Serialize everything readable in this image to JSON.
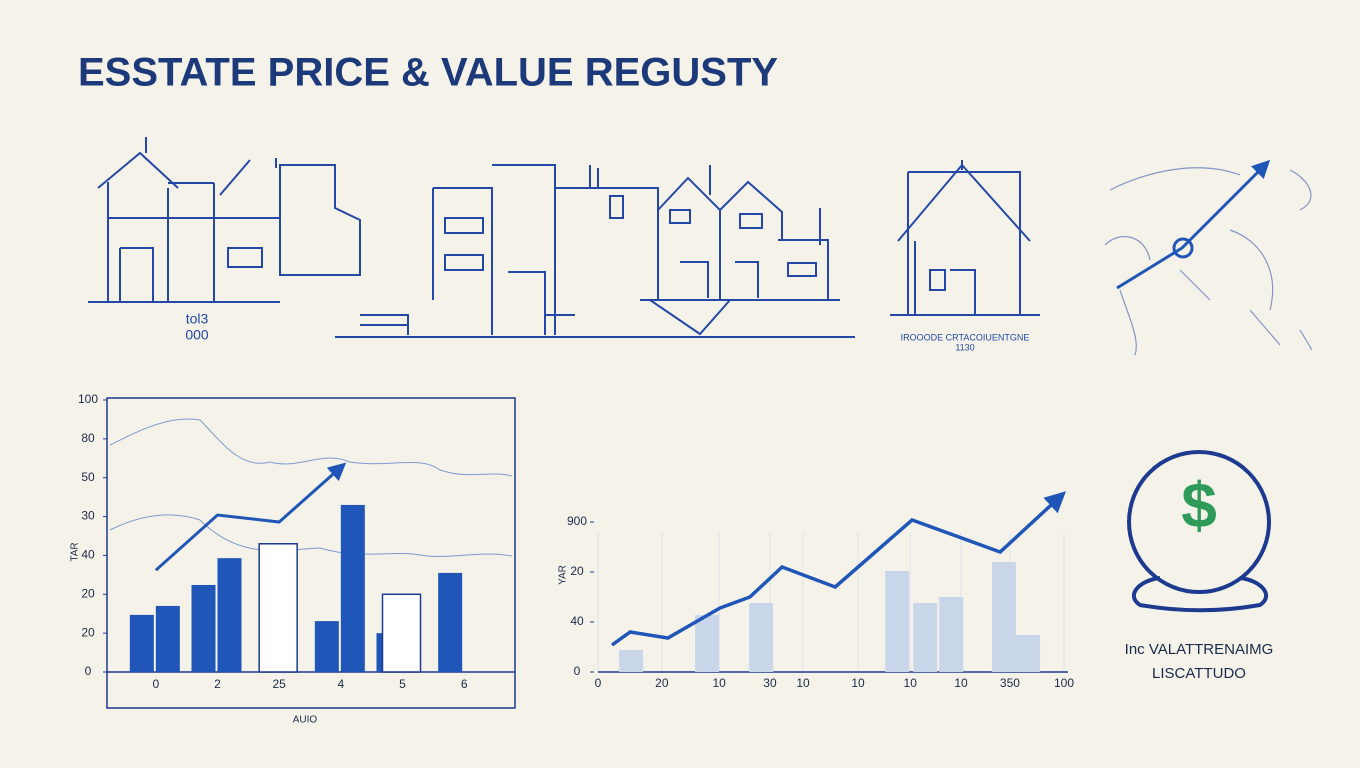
{
  "title": "ESSTATE PRICE & VALUE REGUSTY",
  "illustrations": {
    "house_label": [
      "tol3",
      "000"
    ],
    "caption": "IROOODE CRTACOIUENTGNE",
    "caption_sub": "1130"
  },
  "chart_data": [
    {
      "type": "bar",
      "ylabel": "TAR",
      "xlabel": "AUIO",
      "categories": [
        "0",
        "2",
        "25",
        "4",
        "5",
        "6"
      ],
      "series": [
        {
          "color": "#1f56b8",
          "values": [
            1.47,
            2.24,
            null,
            1.31,
            1.0,
            2.55
          ]
        },
        {
          "color": "#1f56b8",
          "values": [
            1.7,
            2.93,
            null,
            4.3,
            null,
            null
          ]
        },
        {
          "color": "#ffffff",
          "values": [
            null,
            null,
            3.3,
            null,
            2.0,
            null
          ]
        },
        {
          "type": "line",
          "color": "#1f56b8",
          "values": [
            2.62,
            4.04,
            3.86,
            5.27,
            null,
            null
          ]
        }
      ],
      "ylim": [
        0,
        7
      ],
      "yticks": [
        {
          "value": 0,
          "label": "0"
        },
        {
          "value": 1,
          "label": "20"
        },
        {
          "value": 2,
          "label": "20"
        },
        {
          "value": 3,
          "label": "40"
        },
        {
          "value": 4,
          "label": "30"
        },
        {
          "value": 5,
          "label": "50"
        },
        {
          "value": 6,
          "label": "80"
        },
        {
          "value": 7,
          "label": "100"
        }
      ]
    },
    {
      "type": "line",
      "ylabel": "YAR",
      "x": [
        0.3,
        0.69,
        1.5,
        2.62,
        3.26,
        3.95,
        5.09,
        6.74,
        8.63,
        9.91
      ],
      "values": [
        0.54,
        0.8,
        0.68,
        1.28,
        1.5,
        2.1,
        1.7,
        3.04,
        2.4,
        3.5
      ],
      "color": "#1f56b8",
      "bars": {
        "color": "#c9d6ea",
        "x": [
          0.71,
          2.34,
          3.5,
          6.42,
          7.02,
          7.58,
          8.71,
          9.23
        ],
        "values": [
          0.44,
          1.14,
          1.38,
          2.02,
          1.38,
          1.5,
          2.2,
          0.74
        ]
      },
      "xlim": [
        0,
        10
      ],
      "xticks": [
        0,
        {
          "value": 1.37,
          "label": "20"
        },
        {
          "value": 2.6,
          "label": "10"
        },
        {
          "value": 3.69,
          "label": "30"
        },
        {
          "value": 4.4,
          "label": "10"
        },
        {
          "value": 5.58,
          "label": "10"
        },
        {
          "value": 6.7,
          "label": "10"
        },
        {
          "value": 7.79,
          "label": "10"
        },
        {
          "value": 8.84,
          "label": "350"
        },
        {
          "value": 10,
          "label": "100"
        }
      ],
      "ylim": [
        0,
        3.6
      ],
      "yticks": [
        0,
        {
          "value": 1,
          "label": "40"
        },
        {
          "value": 2,
          "label": "20"
        },
        {
          "value": 3,
          "label": "900"
        }
      ]
    }
  ],
  "badge": {
    "symbol": "$",
    "lines": [
      "Inc VALATTRENAIMG",
      "LISCATTUDO"
    ]
  }
}
